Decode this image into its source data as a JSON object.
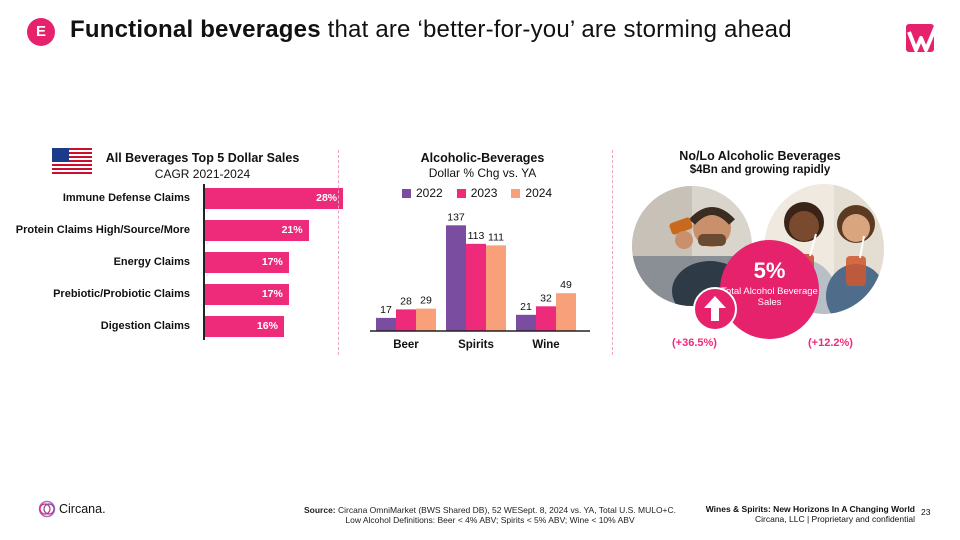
{
  "header": {
    "badge": "E",
    "title_bold": "Functional beverages",
    "title_rest": " that are ‘better-for-you’ are storming ahead",
    "logo_icon": "wines-spirits-logo-icon"
  },
  "colors": {
    "pink": "#ee2a7b",
    "purple": "#7b4da1",
    "salmon": "#f7a07a",
    "magenta": "#e5226b"
  },
  "chart_data": [
    {
      "type": "bar",
      "orientation": "horizontal",
      "title": "All Beverages Top 5 Dollar Sales",
      "subtitle": "CAGR 2021-2024",
      "categories": [
        "Immune Defense Claims",
        "Protein Claims High/Source/More",
        "Energy Claims",
        "Prebiotic/Probiotic Claims",
        "Digestion Claims"
      ],
      "values": [
        28,
        21,
        17,
        17,
        16
      ],
      "value_labels": [
        "28%",
        "21%",
        "17%",
        "17%",
        "16%"
      ],
      "xlim": [
        0,
        30
      ]
    },
    {
      "type": "bar",
      "title": "Alcoholic-Beverages",
      "subtitle": "Dollar % Chg vs. YA",
      "categories": [
        "Beer",
        "Spirits",
        "Wine"
      ],
      "series": [
        {
          "name": "2022",
          "values": [
            17,
            137,
            21
          ]
        },
        {
          "name": "2023",
          "values": [
            28,
            113,
            32
          ]
        },
        {
          "name": "2024",
          "values": [
            29,
            111,
            49
          ]
        }
      ],
      "ylim": [
        0,
        140
      ],
      "legend": "top"
    }
  ],
  "nolo": {
    "title": "No/Lo Alcoholic Beverages",
    "subtitle": "$4Bn and growing rapidly",
    "pct": "5%",
    "pct_label": "Total Alcohol Beverage Sales",
    "chg_left": "(+36.5%)",
    "chg_right": "(+12.2%)"
  },
  "footer": {
    "brand": "Circana.",
    "source_label": "Source:",
    "source_text": "Circana OmniMarket (BWS Shared DB), 52 WESept. 8, 2024 vs. YA, Total U.S. MULO+C.",
    "source_line2": "Low Alcohol Definitions: Beer < 4% ABV; Spirits < 5% ABV; Wine < 10% ABV",
    "right_title": "Wines & Spirits: New Horizons In A Changing World",
    "right_sub": "Circana, LLC  |  Proprietary and confidential",
    "page": "23"
  }
}
